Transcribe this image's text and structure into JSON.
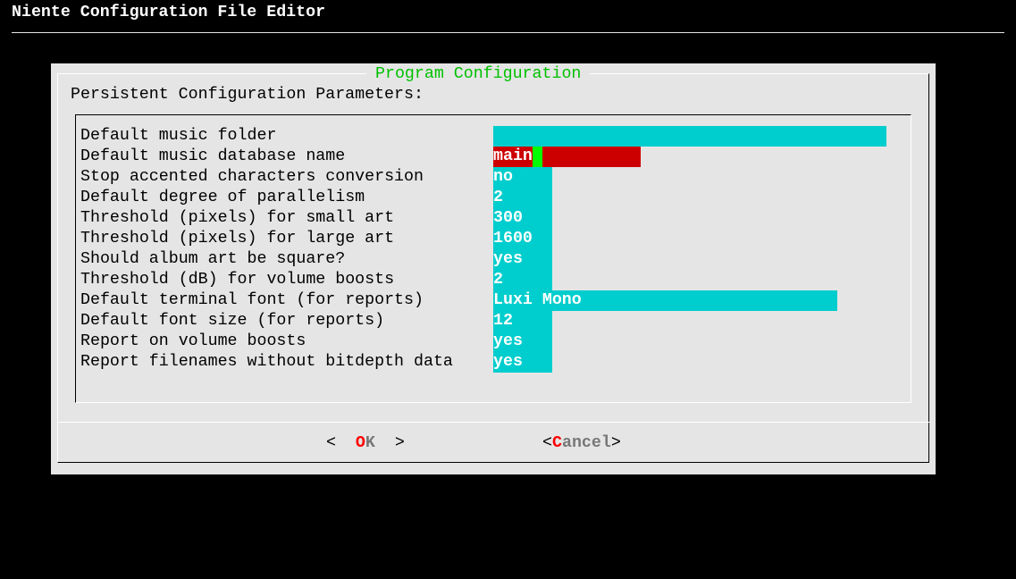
{
  "app_title": "Niente Configuration File Editor",
  "dialog": {
    "title": "Program Configuration",
    "subtitle": "Persistent Configuration Parameters:",
    "fields": [
      {
        "label": "Default music folder",
        "value": ""
      },
      {
        "label": "Default music database name",
        "value": "main"
      },
      {
        "label": "Stop accented characters conversion",
        "value": "no"
      },
      {
        "label": "Default degree of parallelism",
        "value": "2"
      },
      {
        "label": "Threshold (pixels) for small art",
        "value": "300"
      },
      {
        "label": "Threshold (pixels) for large art",
        "value": "1600"
      },
      {
        "label": "Should album art be square?",
        "value": "yes"
      },
      {
        "label": "Threshold (dB) for volume boosts",
        "value": "2"
      },
      {
        "label": "Default terminal font (for reports)",
        "value": "Luxi Mono"
      },
      {
        "label": "Default font size (for reports)",
        "value": "12"
      },
      {
        "label": "Report on volume boosts",
        "value": "yes"
      },
      {
        "label": "Report filenames without bitdepth data",
        "value": "yes"
      }
    ],
    "ok": {
      "open": "<  ",
      "hotkey": "O",
      "rest": "K",
      "close": "  >"
    },
    "cancel": {
      "open": "<",
      "hotkey": "C",
      "rest": "ancel",
      "close": ">"
    }
  },
  "colors": {
    "field": "#00cdcd",
    "focused_field": "#cd0000",
    "cursor": "#00ff00",
    "title": "#00c000",
    "hotkey": "#ff0000"
  }
}
